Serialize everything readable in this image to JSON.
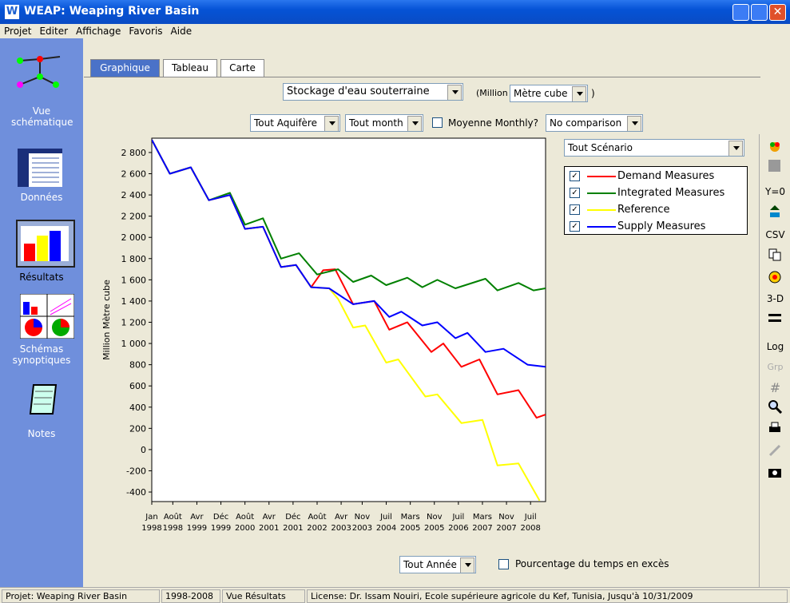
{
  "window": {
    "title": "WEAP: Weaping River Basin",
    "icon": "W"
  },
  "menu": [
    "Projet",
    "Editer",
    "Affichage",
    "Favoris",
    "Aide"
  ],
  "sidebar": [
    "Vue schématique",
    "Données",
    "Résultats",
    "Schémas synoptiques",
    "Notes"
  ],
  "tabs": [
    "Graphique",
    "Tableau",
    "Carte"
  ],
  "controls": {
    "variable": "Stockage d'eau souterraine",
    "unit_open": "(Million",
    "unit": "Mètre cube",
    "unit_close": ")",
    "aquifer": "Tout Aquifère",
    "month": "Tout month",
    "monthly_average": "Moyenne Monthly?",
    "comparison": "No comparison",
    "scenario": "Tout Scénario",
    "year": "Tout Année",
    "exceedance": "Pourcentage du temps en excès"
  },
  "toolbar": [
    "Y=0",
    "CSV",
    "3-D",
    "Log",
    "Grp"
  ],
  "status": [
    "Projet: Weaping River Basin",
    "1998-2008",
    "Vue Résultats",
    "License: Dr. Issam Nouiri, Ecole supérieure agricole du Kef, Tunisia, Jusqu'à 10/31/2009"
  ],
  "chart_data": {
    "type": "line",
    "y_label": "Million Mètre cube",
    "xlim": [
      "1998-01",
      "2008-12"
    ],
    "ylim": [
      -490,
      2935
    ],
    "xticks": [
      {
        "value": "1998-01",
        "label": [
          "Jan",
          "1998"
        ]
      },
      {
        "value": "1998-08",
        "label": [
          "Août",
          "1998"
        ]
      },
      {
        "value": "1999-04",
        "label": [
          "Avr",
          "1999"
        ]
      },
      {
        "value": "1999-12",
        "label": [
          "Déc",
          "1999"
        ]
      },
      {
        "value": "2000-08",
        "label": [
          "Août",
          "2000"
        ]
      },
      {
        "value": "2001-04",
        "label": [
          "Avr",
          "2001"
        ]
      },
      {
        "value": "2001-12",
        "label": [
          "Déc",
          "2001"
        ]
      },
      {
        "value": "2002-08",
        "label": [
          "Août",
          "2002"
        ]
      },
      {
        "value": "2003-04",
        "label": [
          "Avr",
          "2003"
        ]
      },
      {
        "value": "2003-11",
        "label": [
          "Nov",
          "2003"
        ]
      },
      {
        "value": "2004-07",
        "label": [
          "Juil",
          "2004"
        ]
      },
      {
        "value": "2005-03",
        "label": [
          "Mars",
          "2005"
        ]
      },
      {
        "value": "2005-11",
        "label": [
          "Nov",
          "2005"
        ]
      },
      {
        "value": "2006-07",
        "label": [
          "Juil",
          "2006"
        ]
      },
      {
        "value": "2007-03",
        "label": [
          "Mars",
          "2007"
        ]
      },
      {
        "value": "2007-11",
        "label": [
          "Nov",
          "2007"
        ]
      },
      {
        "value": "2008-07",
        "label": [
          "Juil",
          "2008"
        ]
      }
    ],
    "yticks": [
      {
        "value": 2800,
        "label": "2 800"
      },
      {
        "value": 2600,
        "label": "2 600"
      },
      {
        "value": 2400,
        "label": "2 400"
      },
      {
        "value": 2200,
        "label": "2 200"
      },
      {
        "value": 2000,
        "label": "2 000"
      },
      {
        "value": 1800,
        "label": "1 800"
      },
      {
        "value": 1600,
        "label": "1 600"
      },
      {
        "value": 1400,
        "label": "1 400"
      },
      {
        "value": 1200,
        "label": "1 200"
      },
      {
        "value": 1000,
        "label": "1 000"
      },
      800,
      600,
      400,
      200,
      0,
      -200,
      -400
    ],
    "series": [
      {
        "name": "Demand Measures",
        "color": "#ff0000",
        "x": [
          "1998-01",
          "1998-07",
          "1999-02",
          "1999-08",
          "2000-03",
          "2000-08",
          "2001-02",
          "2001-08",
          "2002-01",
          "2002-06",
          "2002-10",
          "2003-02",
          "2003-08",
          "2004-03",
          "2004-08",
          "2005-02",
          "2005-10",
          "2006-02",
          "2006-08",
          "2007-02",
          "2007-08",
          "2008-03",
          "2008-09",
          "2008-12"
        ],
        "values": [
          2920,
          2600,
          2660,
          2350,
          2400,
          2080,
          2100,
          1720,
          1740,
          1530,
          1690,
          1700,
          1370,
          1400,
          1130,
          1200,
          920,
          1000,
          780,
          850,
          520,
          560,
          300,
          330
        ]
      },
      {
        "name": "Integrated Measures",
        "color": "#008000",
        "x": [
          "1998-01",
          "1998-07",
          "1999-02",
          "1999-08",
          "2000-03",
          "2000-08",
          "2001-02",
          "2001-08",
          "2002-02",
          "2002-08",
          "2003-03",
          "2003-08",
          "2004-02",
          "2004-07",
          "2005-02",
          "2005-07",
          "2005-12",
          "2006-06",
          "2007-04",
          "2007-08",
          "2008-03",
          "2008-08",
          "2008-12"
        ],
        "values": [
          2920,
          2600,
          2660,
          2350,
          2420,
          2120,
          2180,
          1800,
          1850,
          1650,
          1700,
          1580,
          1640,
          1550,
          1620,
          1530,
          1600,
          1520,
          1610,
          1500,
          1570,
          1500,
          1520
        ]
      },
      {
        "name": "Reference",
        "color": "#ffff00",
        "x": [
          "1998-01",
          "1998-07",
          "1999-02",
          "1999-08",
          "2000-03",
          "2000-08",
          "2001-02",
          "2001-08",
          "2002-01",
          "2002-06",
          "2002-12",
          "2003-03",
          "2003-08",
          "2003-12",
          "2004-07",
          "2004-11",
          "2005-08",
          "2005-12",
          "2006-08",
          "2007-03",
          "2007-08",
          "2008-03",
          "2008-10"
        ],
        "values": [
          2920,
          2600,
          2660,
          2350,
          2400,
          2080,
          2100,
          1720,
          1740,
          1530,
          1520,
          1420,
          1150,
          1170,
          820,
          850,
          500,
          520,
          250,
          280,
          -150,
          -130,
          -480
        ]
      },
      {
        "name": "Supply Measures",
        "color": "#0000ff",
        "x": [
          "1998-01",
          "1998-07",
          "1999-02",
          "1999-08",
          "2000-03",
          "2000-08",
          "2001-02",
          "2001-08",
          "2002-01",
          "2002-06",
          "2002-12",
          "2003-08",
          "2004-03",
          "2004-08",
          "2004-12",
          "2005-07",
          "2005-12",
          "2006-06",
          "2006-10",
          "2007-04",
          "2007-10",
          "2008-06",
          "2008-12"
        ],
        "values": [
          2920,
          2600,
          2660,
          2350,
          2400,
          2080,
          2100,
          1720,
          1740,
          1530,
          1520,
          1370,
          1400,
          1250,
          1300,
          1170,
          1200,
          1050,
          1100,
          920,
          950,
          800,
          780
        ]
      }
    ]
  }
}
